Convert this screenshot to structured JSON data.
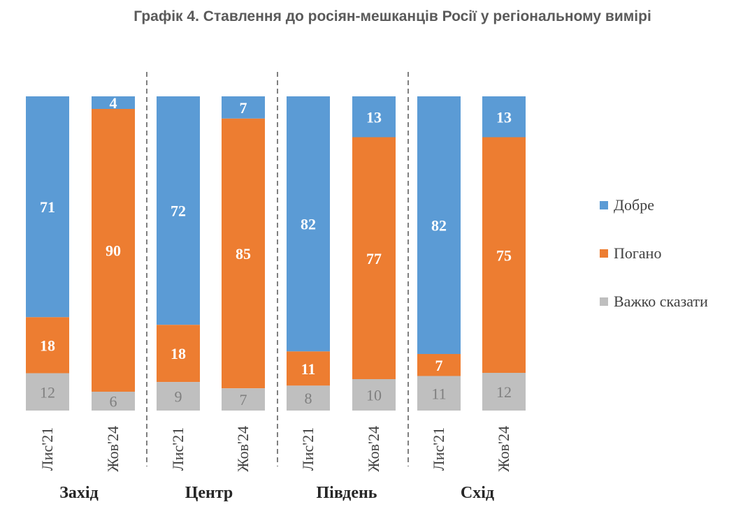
{
  "chart_data": {
    "type": "bar",
    "stacked": true,
    "title": "Графік 4. Ставлення до росіян-мешканців Росії у регіональному вимірі",
    "legend_position": "right",
    "series": [
      {
        "name": "Добре",
        "color": "#5b9bd5"
      },
      {
        "name": "Погано",
        "color": "#ed7d31"
      },
      {
        "name": "Важко сказати",
        "color": "#bfbfbf"
      }
    ],
    "groups": [
      {
        "name": "Захід",
        "bars": [
          {
            "label": "Лис'21",
            "values": [
              71,
              18,
              12
            ]
          },
          {
            "label": "Жов'24",
            "values": [
              4,
              90,
              6
            ]
          }
        ]
      },
      {
        "name": "Центр",
        "bars": [
          {
            "label": "Лис'21",
            "values": [
              72,
              18,
              9
            ]
          },
          {
            "label": "Жов'24",
            "values": [
              7,
              85,
              7
            ]
          }
        ]
      },
      {
        "name": "Південь",
        "bars": [
          {
            "label": "Лис'21",
            "values": [
              82,
              11,
              8
            ]
          },
          {
            "label": "Жов'24",
            "values": [
              13,
              77,
              10
            ]
          }
        ]
      },
      {
        "name": "Схід",
        "bars": [
          {
            "label": "Лис'21",
            "values": [
              82,
              7,
              11
            ]
          },
          {
            "label": "Жов'24",
            "values": [
              13,
              75,
              12
            ]
          }
        ]
      }
    ]
  }
}
